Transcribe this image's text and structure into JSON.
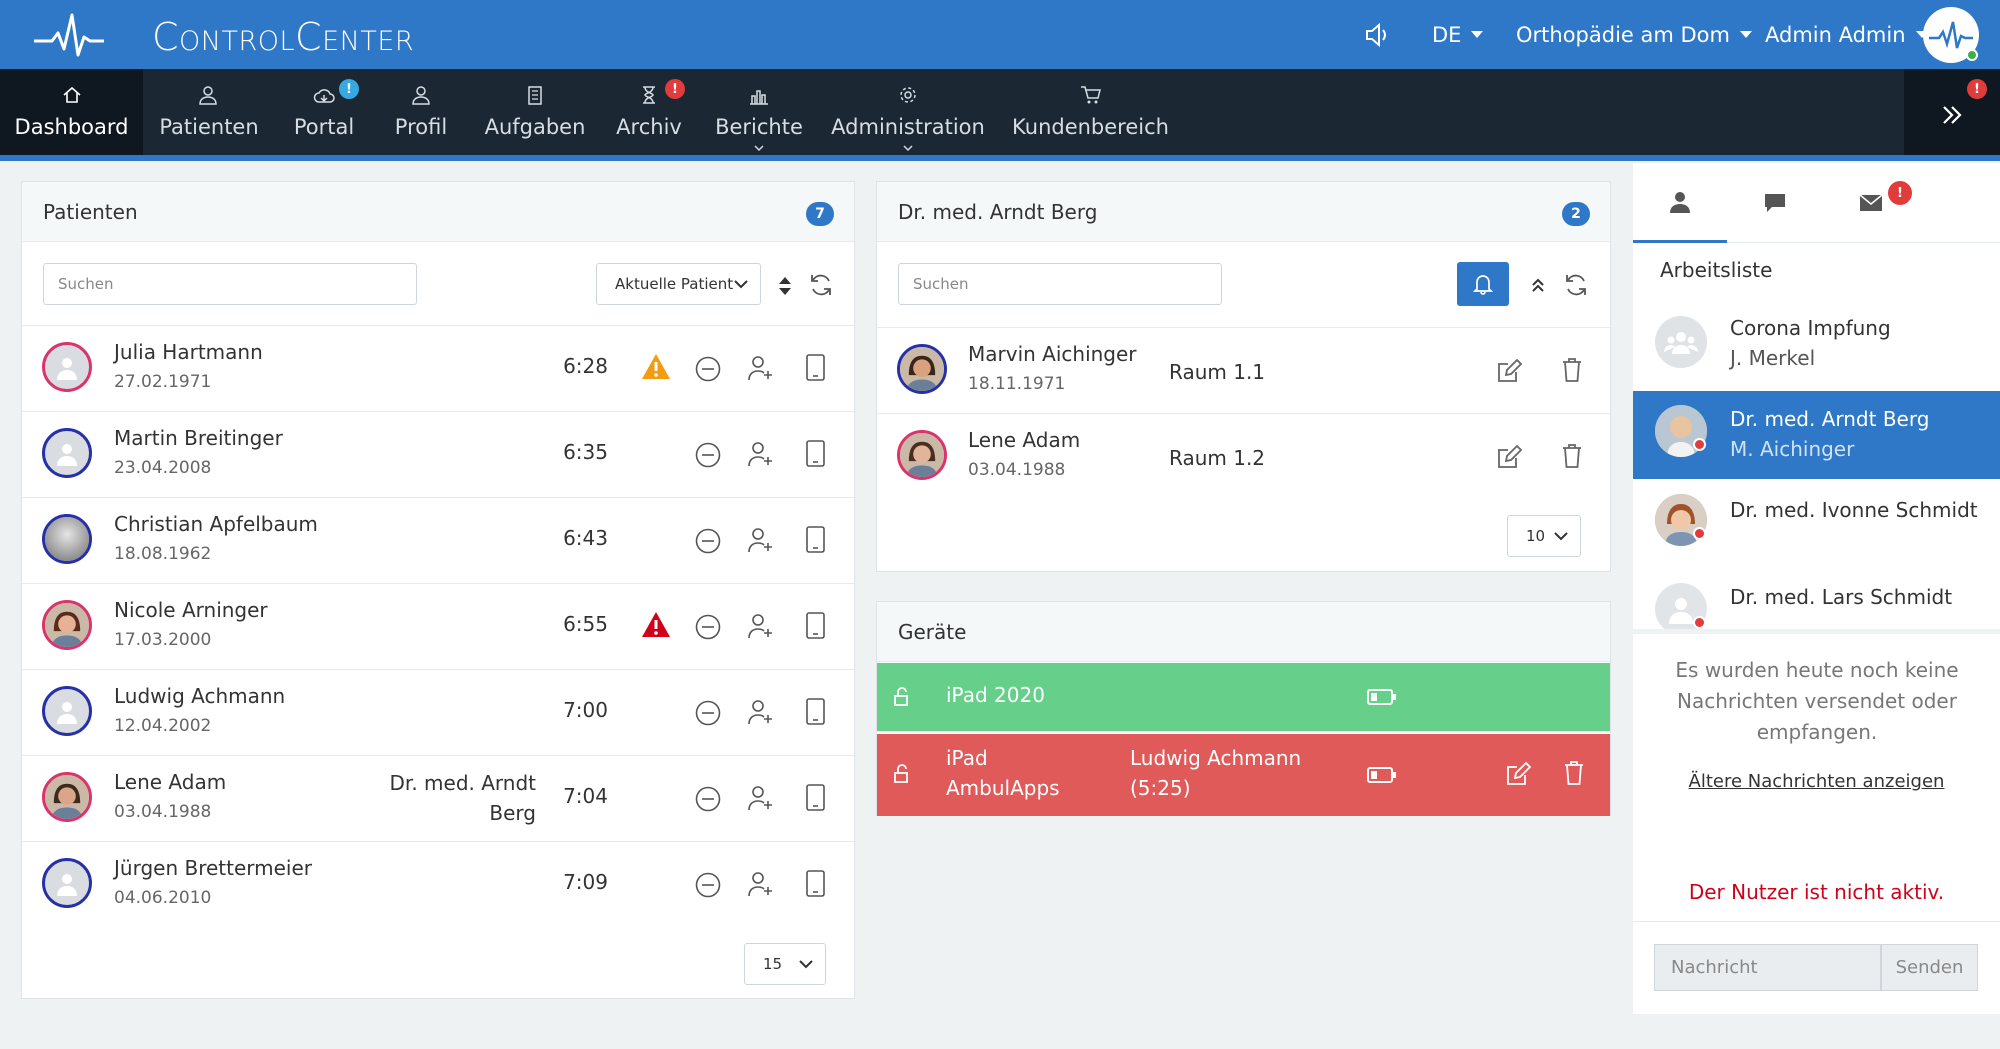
{
  "app": {
    "brand": "ControlCenter",
    "language": "DE",
    "practice": "Orthopädie am Dom",
    "user": "Admin Admin",
    "colors": {
      "primary": "#2f77c7",
      "nav": "#1b2733",
      "green": "#66d08b",
      "red": "#e05a5a",
      "warn_orange": "#f39c12",
      "warn_red": "#d0021b"
    }
  },
  "nav": {
    "items": [
      {
        "label": "Dashboard",
        "icon": "home-icon"
      },
      {
        "label": "Patienten",
        "icon": "users-icon"
      },
      {
        "label": "Portal",
        "icon": "cloud-icon",
        "badge": "!"
      },
      {
        "label": "Profil",
        "icon": "user-icon"
      },
      {
        "label": "Aufgaben",
        "icon": "clipboard-icon"
      },
      {
        "label": "Archiv",
        "icon": "hourglass-icon",
        "badge": "!"
      },
      {
        "label": "Berichte",
        "icon": "bar-chart-icon"
      },
      {
        "label": "Administration",
        "icon": "gear-icon"
      },
      {
        "label": "Kundenbereich",
        "icon": "cart-icon"
      }
    ],
    "expand_badge": "!"
  },
  "patients_panel": {
    "title": "Patienten",
    "count": "7",
    "search_placeholder": "Suchen",
    "filter_value": "Aktuelle Patient",
    "page_size": "15",
    "rows": [
      {
        "name": "Julia Hartmann",
        "dob": "27.02.1971",
        "doctor": "",
        "time": "6:28",
        "warning": "orange"
      },
      {
        "name": "Martin Breitinger",
        "dob": "23.04.2008",
        "doctor": "",
        "time": "6:35",
        "warning": ""
      },
      {
        "name": "Christian Apfelbaum",
        "dob": "18.08.1962",
        "doctor": "",
        "time": "6:43",
        "warning": ""
      },
      {
        "name": "Nicole Arninger",
        "dob": "17.03.2000",
        "doctor": "",
        "time": "6:55",
        "warning": "red"
      },
      {
        "name": "Ludwig Achmann",
        "dob": "12.04.2002",
        "doctor": "",
        "time": "7:00",
        "warning": ""
      },
      {
        "name": "Lene Adam",
        "dob": "03.04.1988",
        "doctor_line1": "Dr. med. Arndt",
        "doctor_line2": "Berg",
        "time": "7:04",
        "warning": ""
      },
      {
        "name": "Jürgen Brettermeier",
        "dob": "04.06.2010",
        "doctor": "",
        "time": "7:09",
        "warning": ""
      }
    ]
  },
  "doctor_panel": {
    "title": "Dr. med. Arndt Berg",
    "count": "2",
    "search_placeholder": "Suchen",
    "page_size": "10",
    "rows": [
      {
        "name": "Marvin Aichinger",
        "dob": "18.11.1971",
        "room": "Raum 1.1"
      },
      {
        "name": "Lene Adam",
        "dob": "03.04.1988",
        "room": "Raum 1.2"
      }
    ]
  },
  "devices_panel": {
    "title": "Geräte",
    "devices": [
      {
        "name": "iPad 2020",
        "patient": "",
        "status": "available"
      },
      {
        "name_line1": "iPad",
        "name_line2": "AmbulApps",
        "patient_line1": "Ludwig Achmann",
        "patient_line2": "(5:25)",
        "status": "in-use"
      }
    ]
  },
  "sidebar": {
    "tabs": [
      "person-icon",
      "chat-icon",
      "mail-icon"
    ],
    "mail_badge": "!",
    "worklist_title": "Arbeitsliste",
    "worklist": [
      {
        "name": "Corona Impfung",
        "sub": "J. Merkel"
      },
      {
        "name": "Dr. med. Arndt Berg",
        "sub": "M. Aichinger"
      },
      {
        "name": "Dr. med. Ivonne Schmidt",
        "sub": ""
      },
      {
        "name": "Dr. med. Lars Schmidt",
        "sub": ""
      }
    ],
    "no_messages": "Es wurden heute noch keine Nachrichten versendet oder empfangen.",
    "older_link": "Ältere Nachrichten anzeigen",
    "inactive_notice": "Der Nutzer ist nicht aktiv.",
    "message_placeholder": "Nachricht",
    "send_label": "Senden"
  }
}
